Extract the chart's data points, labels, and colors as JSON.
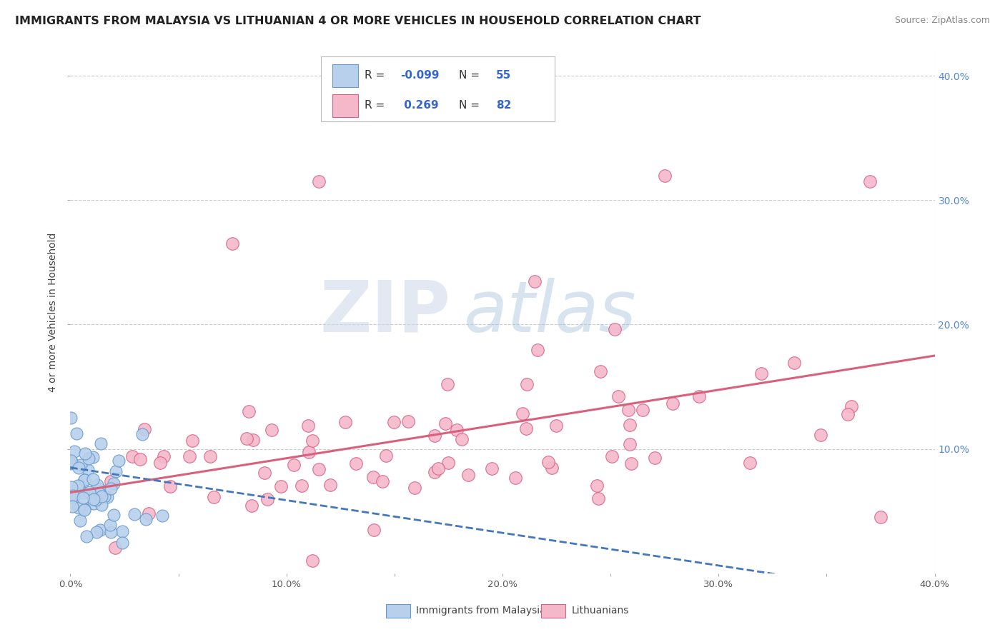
{
  "title": "IMMIGRANTS FROM MALAYSIA VS LITHUANIAN 4 OR MORE VEHICLES IN HOUSEHOLD CORRELATION CHART",
  "source": "Source: ZipAtlas.com",
  "ylabel": "4 or more Vehicles in Household",
  "xlim": [
    0.0,
    0.4
  ],
  "ylim": [
    0.0,
    0.42
  ],
  "x_tick_labels": [
    "0.0%",
    "",
    "10.0%",
    "",
    "20.0%",
    "",
    "30.0%",
    "",
    "40.0%"
  ],
  "x_tick_vals": [
    0.0,
    0.05,
    0.1,
    0.15,
    0.2,
    0.25,
    0.3,
    0.35,
    0.4
  ],
  "y_tick_vals": [
    0.1,
    0.2,
    0.3,
    0.4
  ],
  "y_tick_labels": [
    "10.0%",
    "20.0%",
    "30.0%",
    "40.0%"
  ],
  "series1_label": "Immigrants from Malaysia",
  "series1_color": "#b8d0eb",
  "series1_edge_color": "#6699cc",
  "series2_label": "Lithuanians",
  "series2_color": "#f5b8cb",
  "series2_edge_color": "#d96088",
  "series1_R": -0.099,
  "series1_N": 55,
  "series2_R": 0.269,
  "series2_N": 82,
  "legend_color": "#3366cc",
  "trend1_color": "#4477bb",
  "trend2_color": "#d9607a",
  "watermark_zip": "ZIP",
  "watermark_atlas": "atlas",
  "background_color": "#ffffff",
  "grid_color": "#cccccc",
  "title_fontsize": 11.5,
  "source_fontsize": 9
}
